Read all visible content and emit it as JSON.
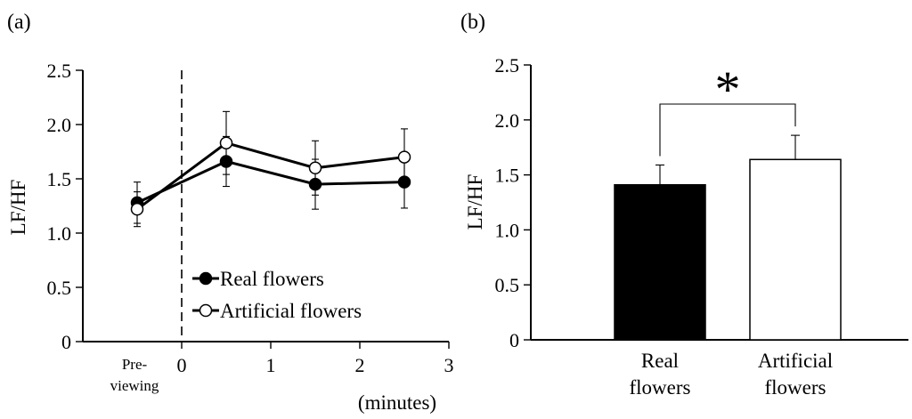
{
  "chart_data": [
    {
      "type": "line",
      "panel_label": "(a)",
      "ylabel": "LF/HF",
      "xlabel": "(minutes)",
      "x_categories": [
        {
          "label_lines": [
            "Pre-",
            "viewing"
          ],
          "x": -0.5
        },
        {
          "label": "0",
          "x": 0
        },
        {
          "label": "1",
          "x": 1
        },
        {
          "label": "2",
          "x": 2
        },
        {
          "label": "3",
          "x": 3
        }
      ],
      "xlim": [
        -1,
        3
      ],
      "ylim": [
        0,
        2.5
      ],
      "yticks": [
        "0",
        "0.5",
        "1.0",
        "1.5",
        "2.0",
        "2.5"
      ],
      "ytick_values": [
        0,
        0.5,
        1.0,
        1.5,
        2.0,
        2.5
      ],
      "divider_x": 0,
      "series": [
        {
          "name": "Real flowers",
          "marker": "filled",
          "x": [
            -0.5,
            0.5,
            1.5,
            2.5
          ],
          "values": [
            1.28,
            1.66,
            1.45,
            1.47
          ],
          "errors": [
            0.19,
            0.23,
            0.23,
            0.24
          ]
        },
        {
          "name": "Artificial flowers",
          "marker": "open",
          "x": [
            -0.5,
            0.5,
            1.5,
            2.5
          ],
          "values": [
            1.22,
            1.83,
            1.6,
            1.7
          ],
          "errors": [
            0.16,
            0.29,
            0.25,
            0.26
          ]
        }
      ],
      "legend": [
        "Real flowers",
        "Artificial flowers"
      ]
    },
    {
      "type": "bar",
      "panel_label": "(b)",
      "ylabel": "LF/HF",
      "ylim": [
        0,
        2.5
      ],
      "yticks": [
        "0",
        "0.5",
        "1.0",
        "1.5",
        "2.0",
        "2.5"
      ],
      "ytick_values": [
        0,
        0.5,
        1.0,
        1.5,
        2.0,
        2.5
      ],
      "categories": [
        {
          "label_lines": [
            "Real",
            "flowers"
          ],
          "value": 1.41,
          "error": 0.18,
          "fill": "#000000"
        },
        {
          "label_lines": [
            "Artificial",
            "flowers"
          ],
          "value": 1.64,
          "error": 0.22,
          "fill": "#ffffff"
        }
      ],
      "significance": "*"
    }
  ]
}
